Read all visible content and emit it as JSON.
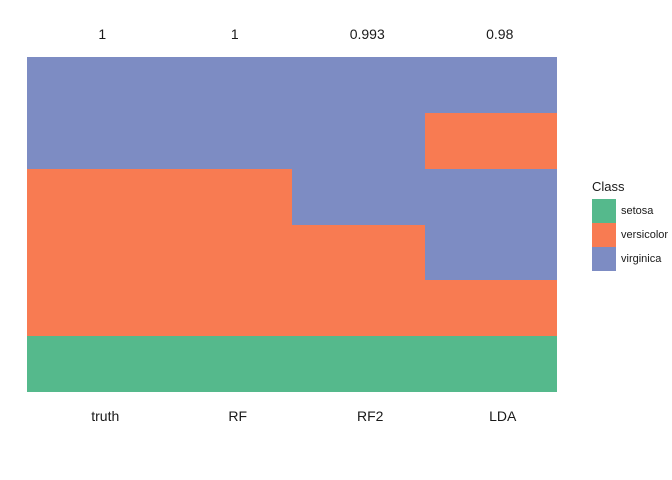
{
  "chart_data": {
    "type": "heatmap",
    "description": "Per-sample predicted class bands for iris data, one column per model, stacked vertically; band heights in fractions of column height",
    "top_labels": [
      "1",
      "1",
      "0.993",
      "0.98"
    ],
    "x_axis_labels": [
      "truth",
      "RF",
      "RF2",
      "LDA"
    ],
    "columns": [
      {
        "label": "truth",
        "accuracy": "1",
        "segments": [
          {
            "class": "virginica",
            "fraction": 0.333333
          },
          {
            "class": "versicolor",
            "fraction": 0.5
          },
          {
            "class": "setosa",
            "fraction": 0.166667
          }
        ]
      },
      {
        "label": "RF",
        "accuracy": "1",
        "segments": [
          {
            "class": "virginica",
            "fraction": 0.333333
          },
          {
            "class": "versicolor",
            "fraction": 0.5
          },
          {
            "class": "setosa",
            "fraction": 0.166667
          }
        ]
      },
      {
        "label": "RF2",
        "accuracy": "0.993",
        "segments": [
          {
            "class": "virginica",
            "fraction": 0.5
          },
          {
            "class": "versicolor",
            "fraction": 0.333333
          },
          {
            "class": "setosa",
            "fraction": 0.166667
          }
        ]
      },
      {
        "label": "LDA",
        "accuracy": "0.98",
        "segments": [
          {
            "class": "virginica",
            "fraction": 0.166667
          },
          {
            "class": "versicolor",
            "fraction": 0.166667
          },
          {
            "class": "virginica",
            "fraction": 0.333333
          },
          {
            "class": "versicolor",
            "fraction": 0.166667
          },
          {
            "class": "setosa",
            "fraction": 0.166667
          }
        ]
      }
    ],
    "colors": {
      "setosa": "#55b98c",
      "versicolor": "#f87b52",
      "virginica": "#7d8cc3"
    },
    "legend": {
      "title": "Class",
      "position": "right",
      "entries": [
        {
          "label": "setosa",
          "color": "#55b98c"
        },
        {
          "label": "versicolor",
          "color": "#f87b52"
        },
        {
          "label": "virginica",
          "color": "#7d8cc3"
        }
      ]
    },
    "grid": false,
    "axes": "none",
    "background": "#ffffff",
    "text_color": "#1a1a1a"
  }
}
